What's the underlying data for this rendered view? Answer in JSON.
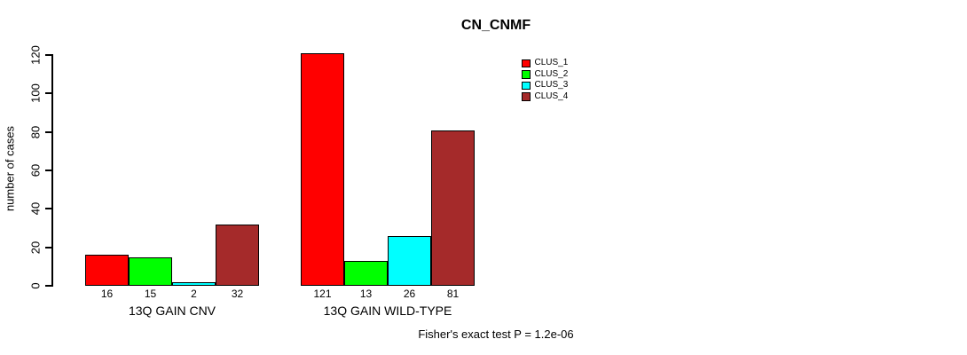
{
  "title": "CN_CNMF",
  "footnote": "Fisher's exact test P = 1.2e-06",
  "chart_data": {
    "type": "bar",
    "title": "CN_CNMF",
    "xlabel": "",
    "ylabel": "number of cases",
    "ylim": [
      0,
      120
    ],
    "yticks": [
      0,
      20,
      40,
      60,
      80,
      100,
      120
    ],
    "grid": false,
    "legend_position": "top-right-inside",
    "show_values_under_bars": true,
    "categories": [
      "13Q GAIN CNV",
      "13Q GAIN WILD-TYPE"
    ],
    "series": [
      {
        "name": "CLUS_1",
        "color": "#FF0000",
        "values": [
          16,
          121
        ]
      },
      {
        "name": "CLUS_2",
        "color": "#00FF00",
        "values": [
          15,
          13
        ]
      },
      {
        "name": "CLUS_3",
        "color": "#00FFFF",
        "values": [
          2,
          26
        ]
      },
      {
        "name": "CLUS_4",
        "color": "#A52A2A",
        "values": [
          32,
          81
        ]
      }
    ],
    "annotation": "Fisher's exact test P = 1.2e-06",
    "background_color": "#FFFFFF",
    "text_color": "#000000"
  }
}
